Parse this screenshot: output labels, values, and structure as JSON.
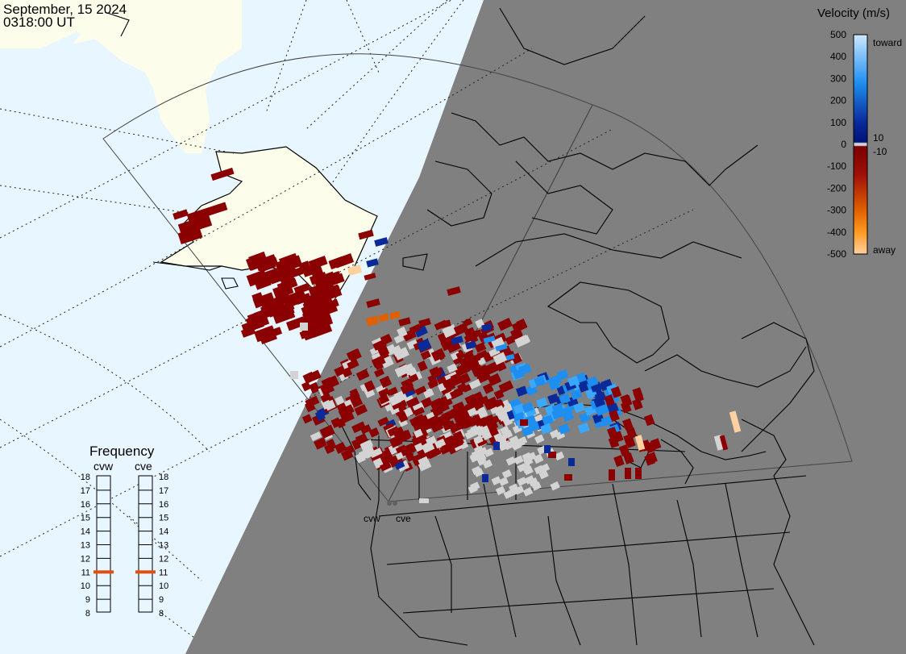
{
  "header": {
    "date": "September, 15 2024",
    "time": "0318:00 UT"
  },
  "velocity_scale": {
    "title": "Velocity (m/s)",
    "ticks": [
      "500",
      "400",
      "300",
      "200",
      "100",
      "0",
      "-100",
      "-200",
      "-300",
      "-400",
      "-500"
    ],
    "label_toward": "toward",
    "label_away": "away",
    "label_pos10": "10",
    "label_neg10": "-10",
    "colors": {
      "toward_light": "#cde8ff",
      "toward_mid": "#1e8ff0",
      "toward_dark": "#0a2a9a",
      "near_zero": "#d3d3d3",
      "away_dark": "#8b0000",
      "away_mid": "#e06000",
      "away_light": "#ffd0a0"
    }
  },
  "frequency_panel": {
    "title": "Frequency",
    "radars": [
      "cvw",
      "cve"
    ],
    "ticks": [
      "18",
      "17",
      "16",
      "15",
      "14",
      "13",
      "12",
      "11",
      "10",
      "9",
      "8"
    ],
    "marker_freq_mhz": 11
  },
  "map": {
    "radar_labels": [
      "cvw",
      "cve"
    ],
    "colors": {
      "ocean_day": "#e8f6ff",
      "land_day": "#fdfdeb",
      "night": "#808080",
      "coast": "#000000"
    }
  }
}
